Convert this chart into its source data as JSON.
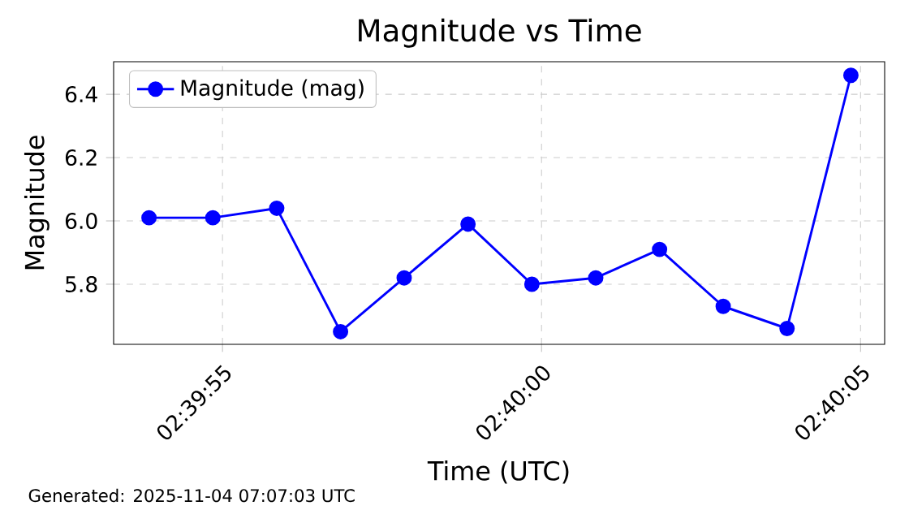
{
  "chart_data": {
    "type": "line",
    "title": "Magnitude vs Time",
    "xlabel": "Time (UTC)",
    "ylabel": "Magnitude",
    "x": [
      2.664958,
      2.665236,
      2.665514,
      2.665792,
      2.666069,
      2.666347,
      2.666625,
      2.666903,
      2.667181,
      2.667458,
      2.667736,
      2.668014
    ],
    "series": [
      {
        "name": "Magnitude (mag)",
        "color": "#0000ff",
        "values": [
          6.01,
          6.01,
          6.04,
          5.65,
          5.82,
          5.99,
          5.8,
          5.82,
          5.91,
          5.73,
          5.66,
          6.46
        ]
      }
    ],
    "xlim": [
      2.664804,
      2.668161
    ],
    "ylim": [
      5.61,
      6.503
    ],
    "xticks": [
      {
        "value": 2.665278,
        "label": "02:39:55"
      },
      {
        "value": 2.666667,
        "label": "02:40:00"
      },
      {
        "value": 2.668056,
        "label": "02:40:05"
      }
    ],
    "yticks": [
      {
        "value": 5.8,
        "label": "5.8"
      },
      {
        "value": 6.0,
        "label": "6.0"
      },
      {
        "value": 6.2,
        "label": "6.2"
      },
      {
        "value": 6.4,
        "label": "6.4"
      }
    ],
    "grid": true,
    "legend": "top left",
    "marker": "circle",
    "line_style": "solid",
    "annotations": [
      "Generated: 2025-11-04 07:07:03 UTC"
    ]
  }
}
